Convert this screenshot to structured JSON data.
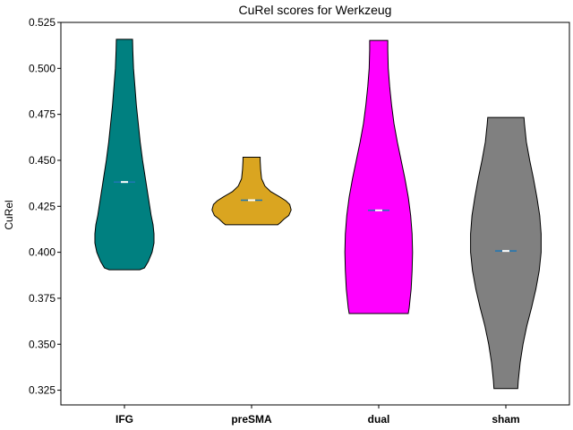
{
  "chart_data": {
    "type": "violin",
    "title": "CuRel scores for Werkzeug",
    "xlabel": "",
    "ylabel": "CuRel",
    "ylim": [
      0.317,
      0.525
    ],
    "yticks": [
      "0.325",
      "0.350",
      "0.375",
      "0.400",
      "0.425",
      "0.450",
      "0.475",
      "0.500",
      "0.525"
    ],
    "categories": [
      "IFG",
      "preSMA",
      "dual",
      "sham"
    ],
    "series": [
      {
        "category": "IFG",
        "color": "#008080",
        "min": 0.3905,
        "max": 0.5158,
        "median": 0.4382,
        "mean": 0.4382,
        "profile": [
          [
            0.3905,
            0.32
          ],
          [
            0.3915,
            0.42
          ],
          [
            0.395,
            0.5
          ],
          [
            0.4,
            0.58
          ],
          [
            0.405,
            0.62
          ],
          [
            0.41,
            0.62
          ],
          [
            0.415,
            0.6
          ],
          [
            0.42,
            0.56
          ],
          [
            0.43,
            0.5
          ],
          [
            0.44,
            0.44
          ],
          [
            0.45,
            0.38
          ],
          [
            0.46,
            0.33
          ],
          [
            0.47,
            0.29
          ],
          [
            0.48,
            0.25
          ],
          [
            0.49,
            0.22
          ],
          [
            0.5,
            0.19
          ],
          [
            0.51,
            0.175
          ],
          [
            0.5158,
            0.17
          ]
        ]
      },
      {
        "category": "preSMA",
        "color": "#DAA520",
        "min": 0.415,
        "max": 0.4517,
        "median": 0.4283,
        "mean": 0.4283,
        "profile": [
          [
            0.415,
            0.55
          ],
          [
            0.416,
            0.6
          ],
          [
            0.418,
            0.68
          ],
          [
            0.42,
            0.78
          ],
          [
            0.423,
            0.83
          ],
          [
            0.426,
            0.8
          ],
          [
            0.428,
            0.72
          ],
          [
            0.43,
            0.6
          ],
          [
            0.433,
            0.4
          ],
          [
            0.436,
            0.28
          ],
          [
            0.44,
            0.21
          ],
          [
            0.445,
            0.19
          ],
          [
            0.45,
            0.18
          ],
          [
            0.4517,
            0.18
          ]
        ]
      },
      {
        "category": "dual",
        "color": "#FF00FF",
        "min": 0.3667,
        "max": 0.5152,
        "median": 0.4228,
        "mean": 0.4228,
        "profile": [
          [
            0.3667,
            0.62
          ],
          [
            0.37,
            0.64
          ],
          [
            0.38,
            0.68
          ],
          [
            0.39,
            0.7
          ],
          [
            0.4,
            0.71
          ],
          [
            0.41,
            0.7
          ],
          [
            0.42,
            0.67
          ],
          [
            0.43,
            0.62
          ],
          [
            0.44,
            0.55
          ],
          [
            0.45,
            0.47
          ],
          [
            0.46,
            0.39
          ],
          [
            0.47,
            0.32
          ],
          [
            0.48,
            0.27
          ],
          [
            0.49,
            0.23
          ],
          [
            0.5,
            0.2
          ],
          [
            0.51,
            0.19
          ],
          [
            0.5152,
            0.19
          ]
        ]
      },
      {
        "category": "sham",
        "color": "#808080",
        "min": 0.3259,
        "max": 0.4733,
        "median": 0.4007,
        "mean": 0.4007,
        "profile": [
          [
            0.3259,
            0.25
          ],
          [
            0.33,
            0.26
          ],
          [
            0.34,
            0.3
          ],
          [
            0.35,
            0.36
          ],
          [
            0.36,
            0.44
          ],
          [
            0.37,
            0.54
          ],
          [
            0.38,
            0.63
          ],
          [
            0.39,
            0.7
          ],
          [
            0.4,
            0.74
          ],
          [
            0.41,
            0.74
          ],
          [
            0.42,
            0.71
          ],
          [
            0.43,
            0.65
          ],
          [
            0.44,
            0.58
          ],
          [
            0.45,
            0.5
          ],
          [
            0.46,
            0.43
          ],
          [
            0.47,
            0.39
          ],
          [
            0.4733,
            0.38
          ]
        ]
      }
    ],
    "median_color": "#ffffff",
    "mean_color": "#1f77b4",
    "grid": false
  }
}
